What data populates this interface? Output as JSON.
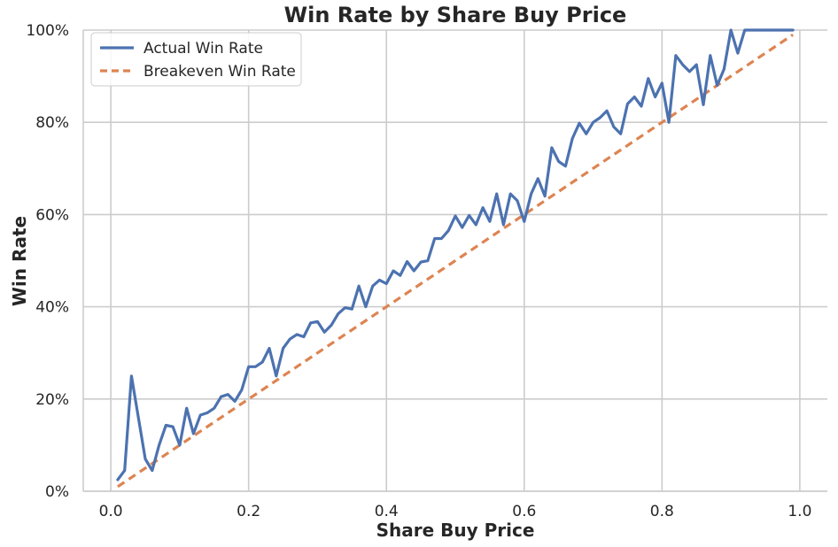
{
  "chart_data": {
    "type": "line",
    "title": "Win Rate by Share Buy Price",
    "xlabel": "Share Buy Price",
    "ylabel": "Win Rate",
    "xlim": [
      -0.04,
      1.04
    ],
    "ylim": [
      0,
      1
    ],
    "x_ticks": [
      0.0,
      0.2,
      0.4,
      0.6,
      0.8,
      1.0
    ],
    "x_tick_labels": [
      "0.0",
      "0.2",
      "0.4",
      "0.6",
      "0.8",
      "1.0"
    ],
    "y_ticks": [
      0,
      0.2,
      0.4,
      0.6,
      0.8,
      1.0
    ],
    "y_tick_labels": [
      "0%",
      "20%",
      "40%",
      "60%",
      "80%",
      "100%"
    ],
    "grid": true,
    "legend_position": "top-left",
    "series": [
      {
        "name": "Actual Win Rate",
        "color": "#4c72b0",
        "style": "solid",
        "x": [
          0.01,
          0.02,
          0.03,
          0.04,
          0.05,
          0.06,
          0.07,
          0.08,
          0.09,
          0.1,
          0.11,
          0.12,
          0.13,
          0.14,
          0.15,
          0.16,
          0.17,
          0.18,
          0.19,
          0.2,
          0.21,
          0.22,
          0.23,
          0.24,
          0.25,
          0.26,
          0.27,
          0.28,
          0.29,
          0.3,
          0.31,
          0.32,
          0.33,
          0.34,
          0.35,
          0.36,
          0.37,
          0.38,
          0.39,
          0.4,
          0.41,
          0.42,
          0.43,
          0.44,
          0.45,
          0.46,
          0.47,
          0.48,
          0.49,
          0.5,
          0.51,
          0.52,
          0.53,
          0.54,
          0.55,
          0.56,
          0.57,
          0.58,
          0.59,
          0.6,
          0.61,
          0.62,
          0.63,
          0.64,
          0.65,
          0.66,
          0.67,
          0.68,
          0.69,
          0.7,
          0.71,
          0.72,
          0.73,
          0.74,
          0.75,
          0.76,
          0.77,
          0.78,
          0.79,
          0.8,
          0.81,
          0.82,
          0.83,
          0.84,
          0.85,
          0.86,
          0.87,
          0.88,
          0.89,
          0.9,
          0.91,
          0.92,
          0.93,
          0.94,
          0.95,
          0.96,
          0.97,
          0.98,
          0.99
        ],
        "y": [
          0.025,
          0.045,
          0.25,
          0.16,
          0.07,
          0.045,
          0.1,
          0.143,
          0.14,
          0.1,
          0.18,
          0.125,
          0.165,
          0.17,
          0.18,
          0.205,
          0.21,
          0.195,
          0.22,
          0.27,
          0.27,
          0.28,
          0.31,
          0.25,
          0.31,
          0.33,
          0.34,
          0.335,
          0.365,
          0.368,
          0.345,
          0.36,
          0.385,
          0.398,
          0.395,
          0.445,
          0.4,
          0.445,
          0.458,
          0.45,
          0.478,
          0.468,
          0.498,
          0.478,
          0.497,
          0.5,
          0.548,
          0.548,
          0.565,
          0.597,
          0.572,
          0.598,
          0.578,
          0.615,
          0.585,
          0.645,
          0.578,
          0.645,
          0.63,
          0.585,
          0.645,
          0.678,
          0.64,
          0.745,
          0.715,
          0.705,
          0.765,
          0.798,
          0.775,
          0.8,
          0.81,
          0.825,
          0.79,
          0.775,
          0.84,
          0.855,
          0.835,
          0.895,
          0.855,
          0.885,
          0.8,
          0.945,
          0.925,
          0.91,
          0.925,
          0.838,
          0.945,
          0.88,
          0.915,
          1.0,
          0.95,
          1.0,
          1.0,
          1.0,
          1.0,
          1.0,
          1.0,
          1.0,
          1.0
        ]
      },
      {
        "name": "Breakeven Win Rate",
        "color": "#dd8452",
        "style": "dashed",
        "x": [
          0.01,
          0.99
        ],
        "y": [
          0.01,
          0.99
        ]
      }
    ]
  }
}
